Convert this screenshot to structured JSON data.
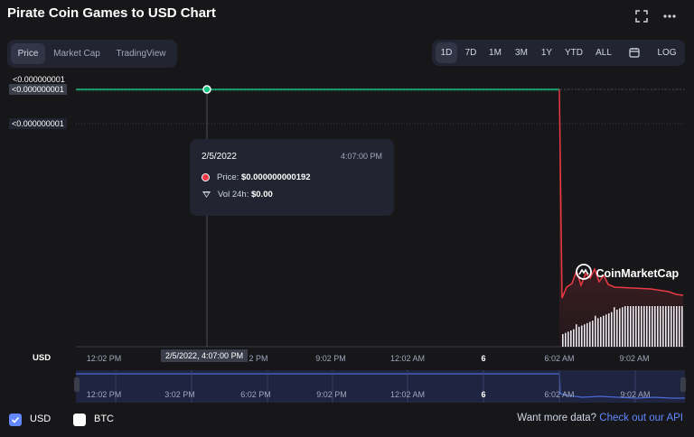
{
  "header": {
    "title": "Pirate Coin Games to USD Chart"
  },
  "tabs": [
    {
      "label": "Price",
      "active": true
    },
    {
      "label": "Market Cap",
      "active": false
    },
    {
      "label": "TradingView",
      "active": false
    }
  ],
  "ranges": {
    "items": [
      "1D",
      "7D",
      "1M",
      "3M",
      "1Y",
      "YTD",
      "ALL"
    ],
    "active": "1D",
    "log_label": "LOG"
  },
  "y_labels": {
    "top": "<0.000000001",
    "current": "<0.000000001",
    "lower": "<0.000000001"
  },
  "tooltip": {
    "date": "2/5/2022",
    "time": "4:07:00 PM",
    "price_label": "Price:",
    "price_value": "$0.000000000192",
    "vol_label": "Vol 24h:",
    "vol_value": "$0.00"
  },
  "x_axis": {
    "unit": "USD",
    "ticks": [
      "12:02 PM",
      "2 PM",
      "9:02 PM",
      "12:02 AM",
      "6",
      "6:02 AM",
      "9:02 AM"
    ],
    "crosshair_label": "2/5/2022, 4:07:00 PM"
  },
  "navigator": {
    "ticks": [
      "12:02 PM",
      "3:02 PM",
      "6:02 PM",
      "9:02 PM",
      "12:02 AM",
      "6",
      "6:02 AM",
      "9:02 AM"
    ]
  },
  "legend": {
    "usd": {
      "label": "USD",
      "checked": true
    },
    "btc": {
      "label": "BTC",
      "checked": false
    }
  },
  "footer": {
    "text": "Want more data?",
    "link": "Check out our API"
  },
  "watermark": "CoinMarketCap",
  "colors": {
    "up": "#16c784",
    "down": "#ea3943",
    "accent": "#6188ff"
  }
}
